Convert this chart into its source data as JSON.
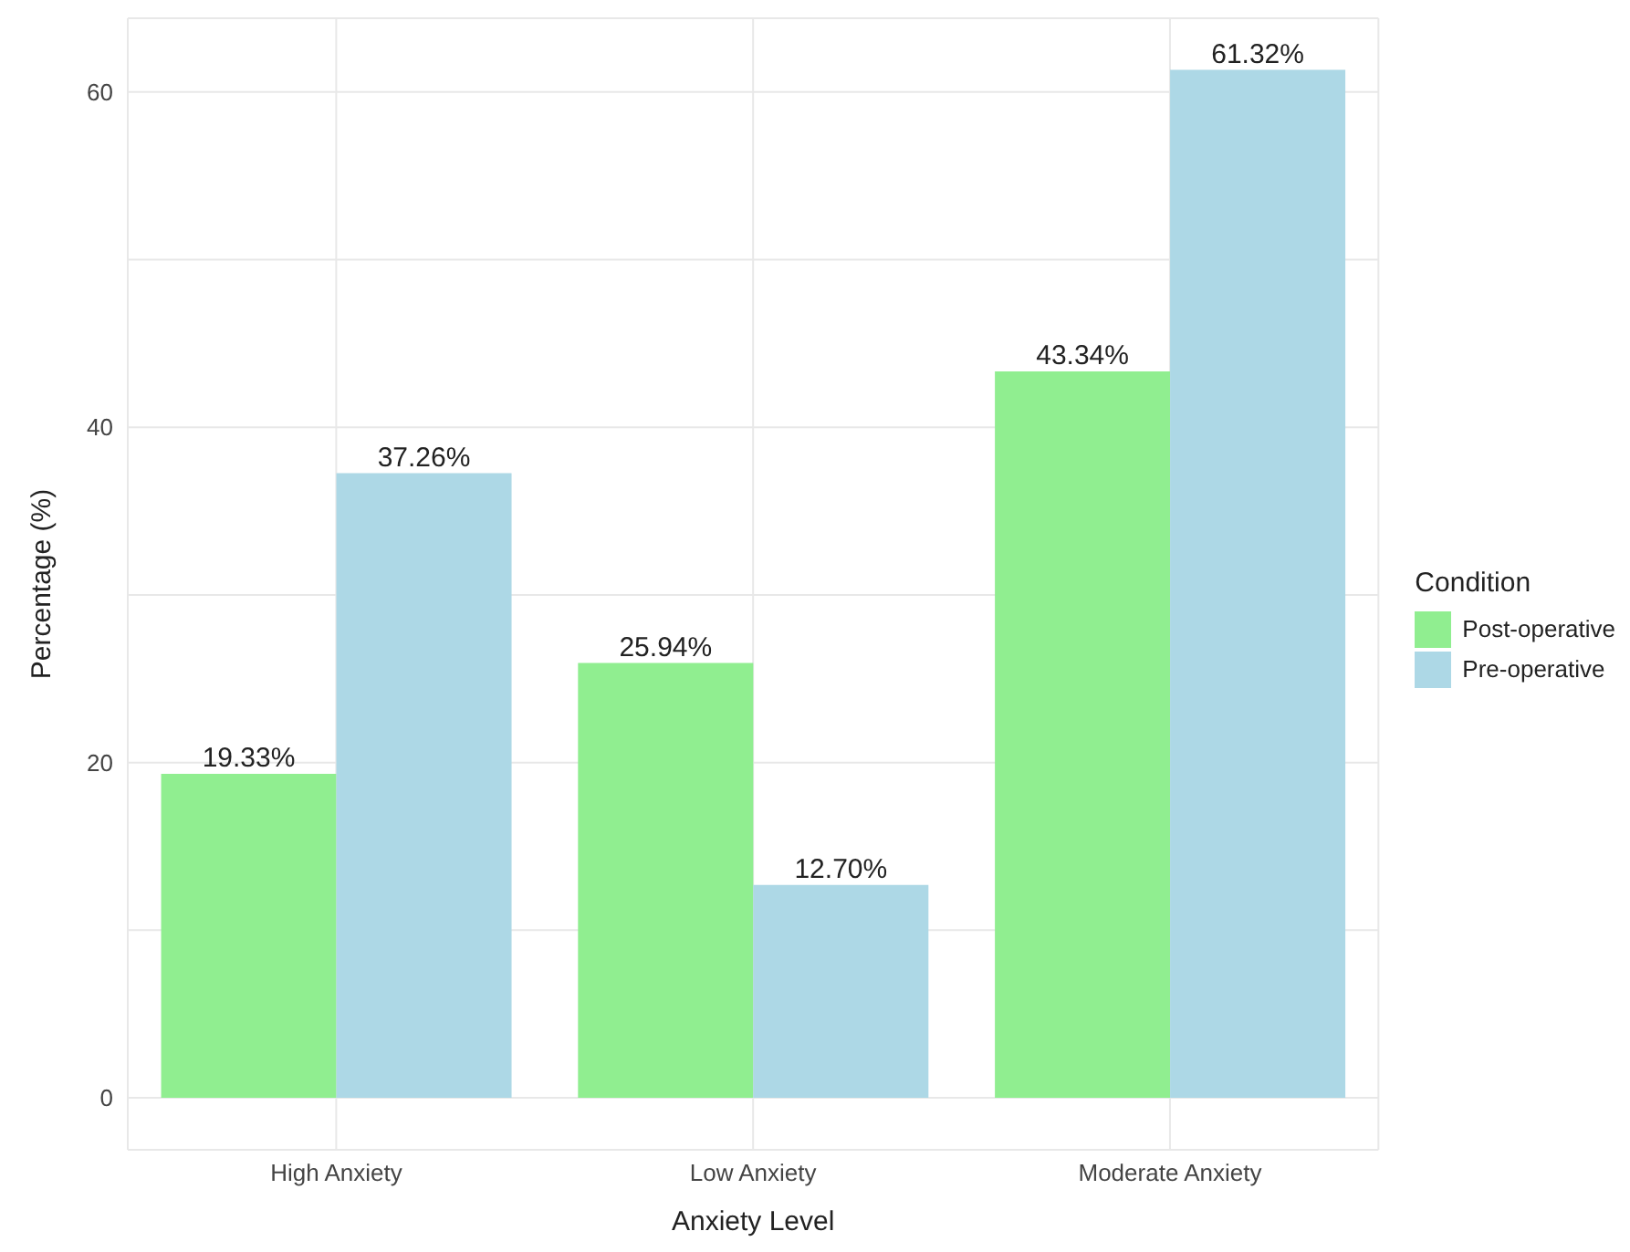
{
  "chart_data": {
    "type": "bar",
    "xlabel": "Anxiety Level",
    "ylabel": "Percentage (%)",
    "legend_title": "Condition",
    "categories": [
      "High Anxiety",
      "Low Anxiety",
      "Moderate Anxiety"
    ],
    "series": [
      {
        "name": "Post-operative",
        "color": "#90ee90",
        "values": [
          19.33,
          25.94,
          43.34
        ],
        "value_labels": [
          "19.33%",
          "25.94%",
          "43.34%"
        ]
      },
      {
        "name": "Pre-operative",
        "color": "#add8e6",
        "values": [
          37.26,
          12.7,
          61.32
        ],
        "value_labels": [
          "37.26%",
          "12.70%",
          "61.32%"
        ]
      }
    ],
    "ylim": [
      -3.1,
      64.4
    ],
    "yticks": [
      0,
      {
        "value": 10,
        "label": null
      },
      20,
      {
        "value": 30,
        "label": null
      },
      40,
      {
        "value": 50,
        "label": null
      },
      60
    ],
    "grid": true,
    "legend": "right"
  }
}
